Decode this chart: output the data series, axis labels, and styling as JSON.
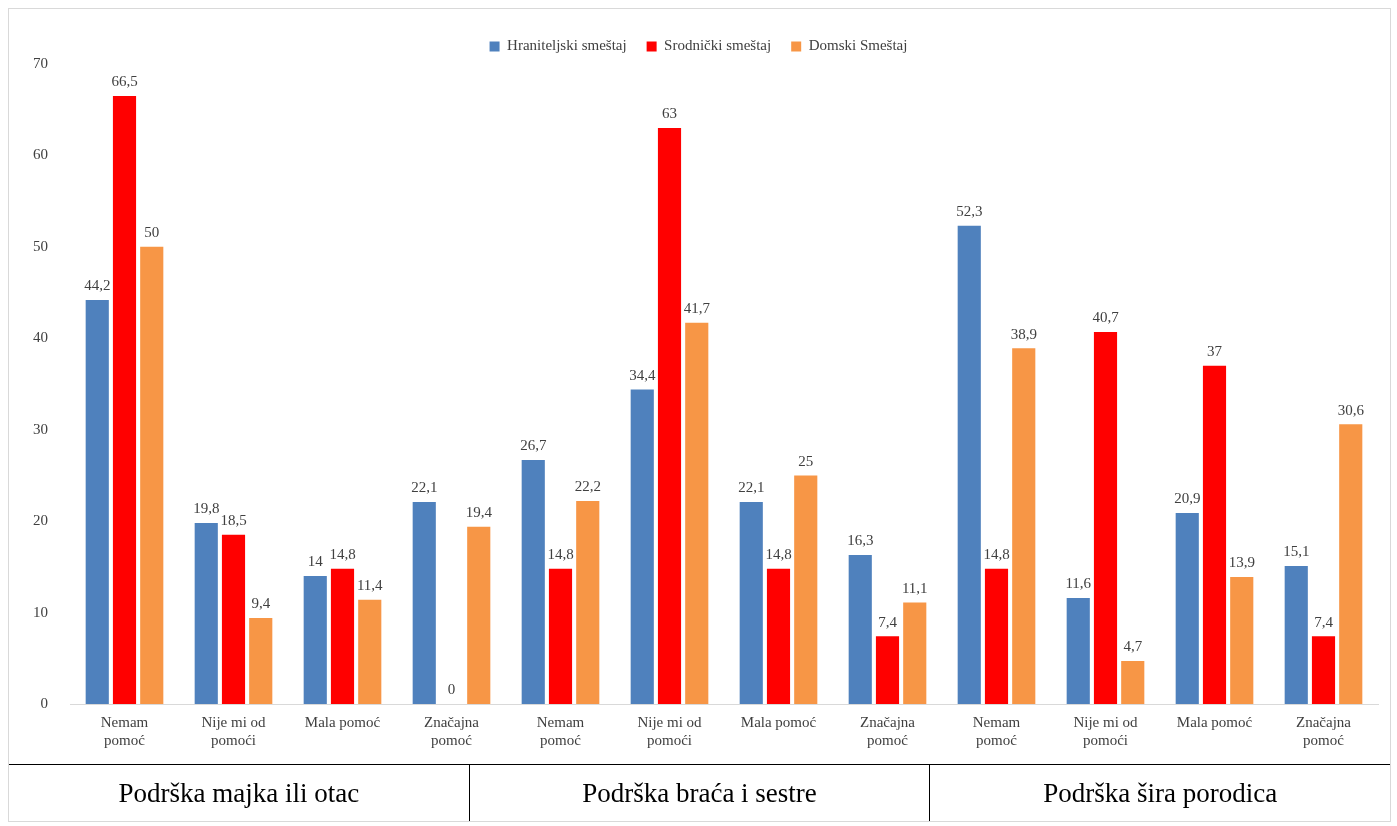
{
  "chart_data": {
    "type": "bar",
    "categories": [
      "Nemam pomoć",
      "Nije mi od pomoći",
      "Mala pomoć",
      "Značajna pomoć",
      "Nemam pomoć",
      "Nije mi od pomoći",
      "Mala pomoć",
      "Značajna pomoć",
      "Nemam pomoć",
      "Nije mi od pomoći",
      "Mala pomoć",
      "Značajna pomoć"
    ],
    "series": [
      {
        "name": "Hraniteljski smeštaj",
        "color": "#4f81bd",
        "values": [
          44.2,
          19.8,
          14,
          22.1,
          26.7,
          34.4,
          22.1,
          16.3,
          52.3,
          11.6,
          20.9,
          15.1
        ],
        "value_labels": [
          "44,2",
          "19,8",
          "14",
          "22,1",
          "26,7",
          "34,4",
          "22,1",
          "16,3",
          "52,3",
          "11,6",
          "20,9",
          "15,1"
        ]
      },
      {
        "name": "Srodnički smeštaj",
        "color": "#ff0000",
        "values": [
          66.5,
          18.5,
          14.8,
          0,
          14.8,
          63,
          14.8,
          7.4,
          14.8,
          40.7,
          37,
          7.4
        ],
        "value_labels": [
          "66,5",
          "18,5",
          "14,8",
          "0",
          "14,8",
          "63",
          "14,8",
          "7,4",
          "14,8",
          "40,7",
          "37",
          "7,4"
        ]
      },
      {
        "name": "Domski Smeštaj",
        "color": "#f79646",
        "values": [
          50,
          9.4,
          11.4,
          19.4,
          22.2,
          41.7,
          25,
          11.1,
          38.9,
          4.7,
          13.9,
          30.6
        ],
        "value_labels": [
          "50",
          "9,4",
          "11,4",
          "19,4",
          "22,2",
          "41,7",
          "25",
          "11,1",
          "38,9",
          "4,7",
          "13,9",
          "30,6"
        ]
      }
    ],
    "ylim": [
      0,
      70
    ],
    "yticks": [
      0,
      10,
      20,
      30,
      40,
      50,
      60,
      70
    ],
    "grid": false,
    "legend": "top",
    "annotations": [
      "Podrška majka ili otac",
      "Podrška braća i sestre",
      "Podrška šira porodica"
    ]
  }
}
